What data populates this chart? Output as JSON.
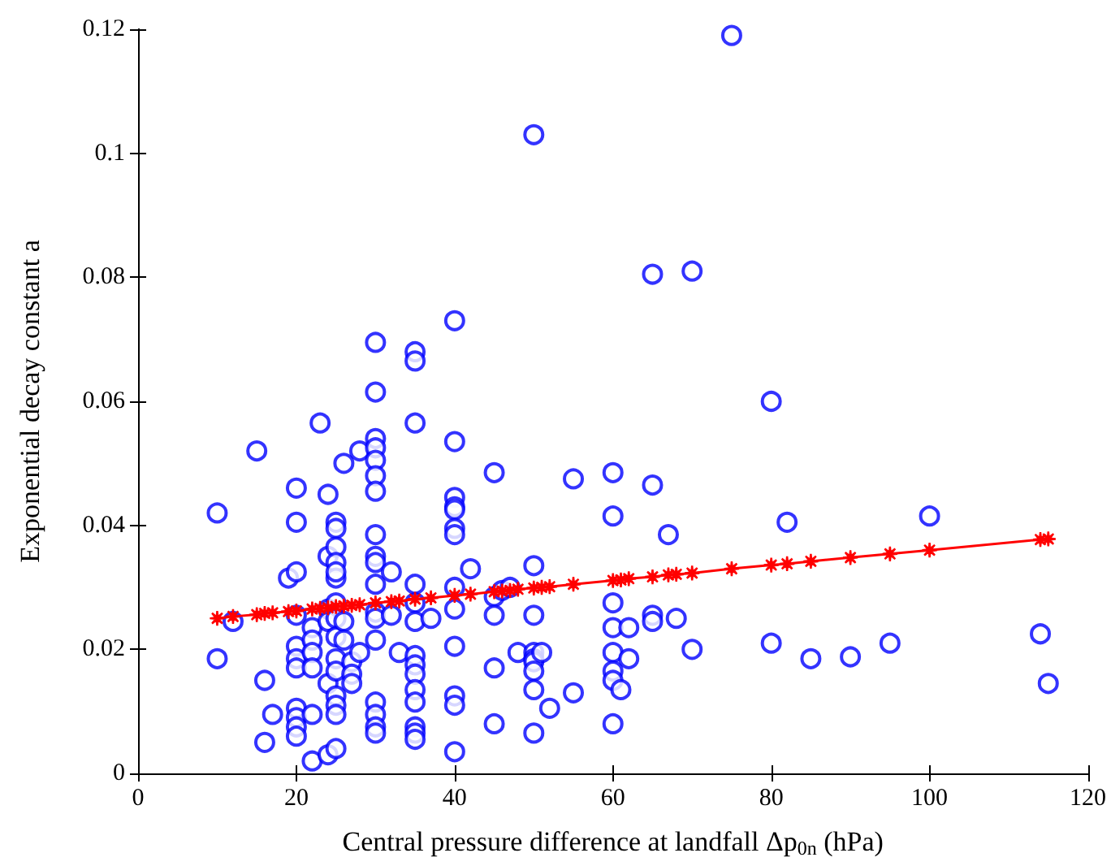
{
  "chart_data": {
    "type": "scatter",
    "xlabel": "Central pressure difference at landfall Δp$_{0n}$ (hPa)",
    "ylabel": "Exponential decay constant a",
    "xlim": [
      0,
      120
    ],
    "xticks": [
      0,
      20,
      40,
      60,
      80,
      100,
      120
    ],
    "ylim": [
      0,
      0.12
    ],
    "yticks": [
      0,
      0.02,
      0.04,
      0.06,
      0.08,
      0.1,
      0.12
    ],
    "grid": false,
    "series": [
      {
        "color": "#0000ff",
        "marker": "circle",
        "x": [
          10,
          10,
          12,
          15,
          16,
          16,
          17,
          19,
          20,
          20,
          20,
          20,
          20,
          20,
          20,
          20,
          20,
          20,
          20,
          22,
          22,
          22,
          22,
          22,
          22,
          23,
          24,
          24,
          24,
          24,
          24,
          24,
          25,
          25,
          25,
          25,
          25,
          25,
          25,
          25,
          25,
          25,
          25,
          25,
          25,
          25,
          25,
          26,
          26,
          26,
          27,
          27,
          27,
          28,
          28,
          30,
          30,
          30,
          30,
          30,
          30,
          30,
          30,
          30,
          30,
          30,
          30,
          30,
          30,
          30,
          30,
          30,
          30,
          32,
          32,
          33,
          35,
          35,
          35,
          35,
          35,
          35,
          35,
          35,
          35,
          35,
          35,
          35,
          35,
          35,
          37,
          40,
          40,
          40,
          40,
          40,
          40,
          40,
          40,
          40,
          40,
          40,
          40,
          40,
          42,
          45,
          45,
          45,
          45,
          45,
          46,
          47,
          48,
          50,
          50,
          50,
          50,
          50,
          50,
          50,
          50,
          50,
          51,
          52,
          55,
          55,
          60,
          60,
          60,
          60,
          60,
          60,
          60,
          60,
          61,
          62,
          62,
          65,
          65,
          65,
          65,
          67,
          68,
          70,
          70,
          75,
          80,
          80,
          82,
          85,
          90,
          95,
          100,
          114,
          115
        ],
        "values": [
          0.042,
          0.0185,
          0.0245,
          0.052,
          0.015,
          0.005,
          0.0095,
          0.0315,
          0.046,
          0.0405,
          0.0325,
          0.0255,
          0.0205,
          0.0185,
          0.017,
          0.0105,
          0.009,
          0.0075,
          0.006,
          0.0235,
          0.0215,
          0.0195,
          0.017,
          0.0095,
          0.002,
          0.0565,
          0.045,
          0.035,
          0.0265,
          0.0245,
          0.0145,
          0.003,
          0.0405,
          0.0395,
          0.0365,
          0.034,
          0.0315,
          0.0325,
          0.0275,
          0.025,
          0.022,
          0.0185,
          0.0165,
          0.0125,
          0.011,
          0.0095,
          0.004,
          0.05,
          0.0245,
          0.0215,
          0.018,
          0.016,
          0.0145,
          0.052,
          0.0195,
          0.0695,
          0.0615,
          0.054,
          0.0525,
          0.0505,
          0.048,
          0.0455,
          0.0385,
          0.035,
          0.034,
          0.0305,
          0.026,
          0.025,
          0.0215,
          0.0115,
          0.0095,
          0.0075,
          0.0065,
          0.0325,
          0.0255,
          0.0195,
          0.068,
          0.0665,
          0.0565,
          0.0305,
          0.0275,
          0.0245,
          0.019,
          0.0175,
          0.016,
          0.0135,
          0.0115,
          0.0075,
          0.0065,
          0.0055,
          0.025,
          0.073,
          0.0535,
          0.0445,
          0.043,
          0.0425,
          0.0395,
          0.0385,
          0.03,
          0.0265,
          0.0205,
          0.0125,
          0.011,
          0.0035,
          0.033,
          0.0485,
          0.0285,
          0.0255,
          0.017,
          0.008,
          0.0295,
          0.03,
          0.0195,
          0.103,
          0.0335,
          0.0255,
          0.0195,
          0.0185,
          0.018,
          0.0165,
          0.0135,
          0.0065,
          0.0195,
          0.0105,
          0.0475,
          0.013,
          0.0485,
          0.0415,
          0.0275,
          0.0235,
          0.0195,
          0.0165,
          0.015,
          0.008,
          0.0135,
          0.0235,
          0.0185,
          0.0805,
          0.0465,
          0.0255,
          0.0245,
          0.0385,
          0.025,
          0.081,
          0.02,
          0.119,
          0.06,
          0.021,
          0.0405,
          0.0185,
          0.0188,
          0.021,
          0.0415,
          0.0225,
          0.0145
        ]
      },
      {
        "type": "line",
        "color": "#ff0000",
        "marker": "star",
        "line_style": "solid",
        "x": [
          10,
          12,
          15,
          16,
          17,
          19,
          20,
          22,
          23,
          24,
          25,
          26,
          27,
          28,
          30,
          32,
          33,
          35,
          37,
          40,
          42,
          45,
          46,
          47,
          48,
          50,
          51,
          52,
          55,
          60,
          61,
          62,
          65,
          67,
          68,
          70,
          75,
          80,
          82,
          85,
          90,
          95,
          100,
          114,
          115
        ],
        "values": [
          0.025,
          0.0253,
          0.0256,
          0.0258,
          0.0259,
          0.0261,
          0.0262,
          0.0265,
          0.0266,
          0.0267,
          0.0269,
          0.027,
          0.0271,
          0.0272,
          0.0275,
          0.0277,
          0.0278,
          0.0281,
          0.0283,
          0.0287,
          0.0289,
          0.0293,
          0.0294,
          0.0295,
          0.0297,
          0.0299,
          0.03,
          0.0301,
          0.0305,
          0.0311,
          0.0312,
          0.0314,
          0.0317,
          0.032,
          0.0321,
          0.0323,
          0.033,
          0.0336,
          0.0338,
          0.0342,
          0.0348,
          0.0354,
          0.036,
          0.0377,
          0.0378
        ]
      }
    ]
  }
}
